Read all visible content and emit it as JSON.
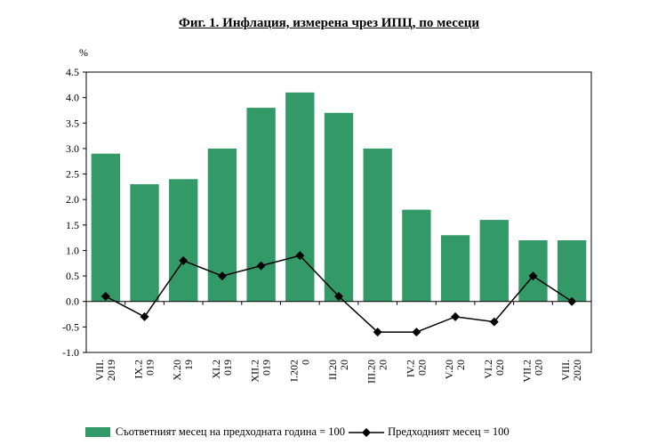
{
  "title": "Фиг. 1. Инфлация, измерена чрез ИПЦ, по месеци",
  "chart_data": {
    "type": "bar",
    "ylabel": "%",
    "ylim": [
      -1.0,
      4.5
    ],
    "ytick_step": 0.5,
    "yticks": [
      "4.5",
      "4.0",
      "3.5",
      "3.0",
      "2.5",
      "2.0",
      "1.5",
      "1.0",
      "0.5",
      "0.0",
      "-0.5",
      "-1.0"
    ],
    "categories": [
      [
        "VIII.",
        "2019"
      ],
      [
        "IX.2",
        "019"
      ],
      [
        "X.20",
        "19"
      ],
      [
        "XI.2",
        "019"
      ],
      [
        "XII.2",
        "019"
      ],
      [
        "I.202",
        "0"
      ],
      [
        "II.20",
        "20"
      ],
      [
        "III.20",
        "20"
      ],
      [
        "IV.2",
        "020"
      ],
      [
        "V.20",
        "20"
      ],
      [
        "VI.2",
        "020"
      ],
      [
        "VII.2",
        "020"
      ],
      [
        "VIII.",
        "2020"
      ]
    ],
    "series": [
      {
        "name": "Съответният месец на предходната година = 100",
        "kind": "bar",
        "color": "#339966",
        "values": [
          2.9,
          2.3,
          2.4,
          3.0,
          3.8,
          4.1,
          3.7,
          3.0,
          1.8,
          1.3,
          1.6,
          1.2,
          1.2
        ]
      },
      {
        "name": "Предходният месец = 100",
        "kind": "line",
        "color": "#000000",
        "values": [
          0.1,
          -0.3,
          0.8,
          0.5,
          0.7,
          0.9,
          0.1,
          -0.6,
          -0.6,
          -0.3,
          -0.4,
          0.5,
          0.0
        ]
      }
    ],
    "grid": false,
    "legend_position": "bottom"
  }
}
